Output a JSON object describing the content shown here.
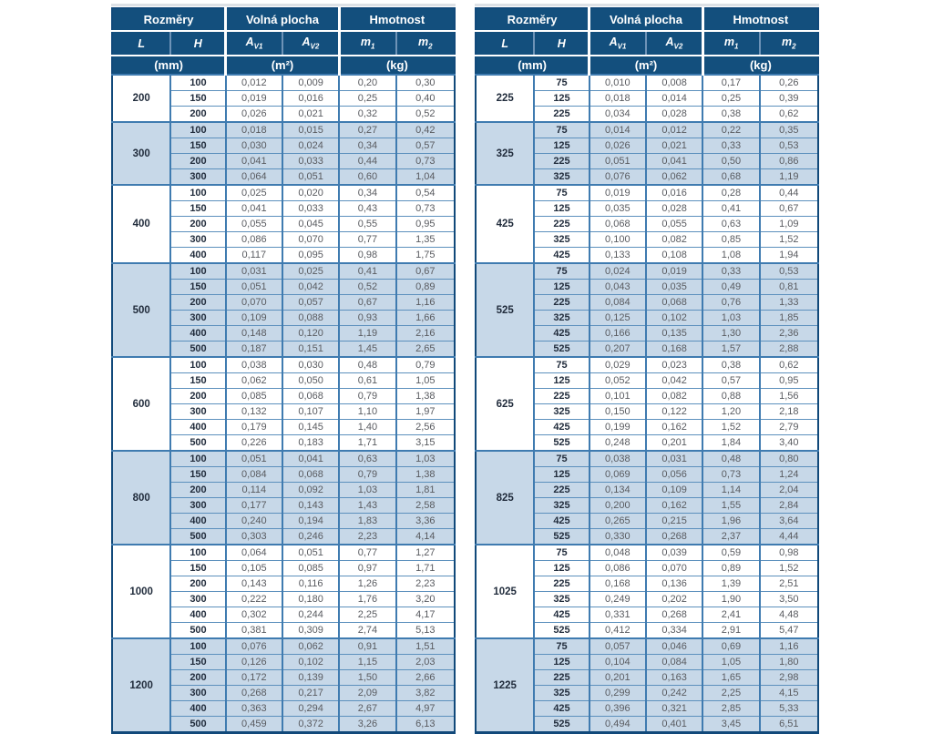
{
  "page": {
    "background": "#ffffff"
  },
  "colors": {
    "header_bg": "#134f7d",
    "header_text": "#ffffff",
    "grid_blue": "#3f7bb0",
    "stripe_light": "#c7d8e8",
    "stripe_white": "#ffffff",
    "dim_text": "#222d3d",
    "value_text": "#595b60",
    "outer_border": "#11497a"
  },
  "header": {
    "sections": [
      {
        "label": "Rozměry",
        "colspan": 2
      },
      {
        "label": "Volná plocha",
        "colspan": 2
      },
      {
        "label": "Hmotnost",
        "colspan": 2
      }
    ],
    "columns": [
      {
        "base": "L",
        "sub": ""
      },
      {
        "base": "H",
        "sub": ""
      },
      {
        "base": "A",
        "sub": "V1"
      },
      {
        "base": "A",
        "sub": "V2"
      },
      {
        "base": "m",
        "sub": "1"
      },
      {
        "base": "m",
        "sub": "2"
      }
    ],
    "units": [
      {
        "label": "(mm)",
        "colspan": 2
      },
      {
        "label": "(m²)",
        "colspan": 2
      },
      {
        "label": "(kg)",
        "colspan": 2
      }
    ]
  },
  "tables": [
    {
      "groups": [
        {
          "L": "200",
          "rows": [
            [
              "100",
              "0,012",
              "0,009",
              "0,20",
              "0,30"
            ],
            [
              "150",
              "0,019",
              "0,016",
              "0,25",
              "0,40"
            ],
            [
              "200",
              "0,026",
              "0,021",
              "0,32",
              "0,52"
            ]
          ]
        },
        {
          "L": "300",
          "rows": [
            [
              "100",
              "0,018",
              "0,015",
              "0,27",
              "0,42"
            ],
            [
              "150",
              "0,030",
              "0,024",
              "0,34",
              "0,57"
            ],
            [
              "200",
              "0,041",
              "0,033",
              "0,44",
              "0,73"
            ],
            [
              "300",
              "0,064",
              "0,051",
              "0,60",
              "1,04"
            ]
          ]
        },
        {
          "L": "400",
          "rows": [
            [
              "100",
              "0,025",
              "0,020",
              "0,34",
              "0,54"
            ],
            [
              "150",
              "0,041",
              "0,033",
              "0,43",
              "0,73"
            ],
            [
              "200",
              "0,055",
              "0,045",
              "0,55",
              "0,95"
            ],
            [
              "300",
              "0,086",
              "0,070",
              "0,77",
              "1,35"
            ],
            [
              "400",
              "0,117",
              "0,095",
              "0,98",
              "1,75"
            ]
          ]
        },
        {
          "L": "500",
          "rows": [
            [
              "100",
              "0,031",
              "0,025",
              "0,41",
              "0,67"
            ],
            [
              "150",
              "0,051",
              "0,042",
              "0,52",
              "0,89"
            ],
            [
              "200",
              "0,070",
              "0,057",
              "0,67",
              "1,16"
            ],
            [
              "300",
              "0,109",
              "0,088",
              "0,93",
              "1,66"
            ],
            [
              "400",
              "0,148",
              "0,120",
              "1,19",
              "2,16"
            ],
            [
              "500",
              "0,187",
              "0,151",
              "1,45",
              "2,65"
            ]
          ]
        },
        {
          "L": "600",
          "rows": [
            [
              "100",
              "0,038",
              "0,030",
              "0,48",
              "0,79"
            ],
            [
              "150",
              "0,062",
              "0,050",
              "0,61",
              "1,05"
            ],
            [
              "200",
              "0,085",
              "0,068",
              "0,79",
              "1,38"
            ],
            [
              "300",
              "0,132",
              "0,107",
              "1,10",
              "1,97"
            ],
            [
              "400",
              "0,179",
              "0,145",
              "1,40",
              "2,56"
            ],
            [
              "500",
              "0,226",
              "0,183",
              "1,71",
              "3,15"
            ]
          ]
        },
        {
          "L": "800",
          "rows": [
            [
              "100",
              "0,051",
              "0,041",
              "0,63",
              "1,03"
            ],
            [
              "150",
              "0,084",
              "0,068",
              "0,79",
              "1,38"
            ],
            [
              "200",
              "0,114",
              "0,092",
              "1,03",
              "1,81"
            ],
            [
              "300",
              "0,177",
              "0,143",
              "1,43",
              "2,58"
            ],
            [
              "400",
              "0,240",
              "0,194",
              "1,83",
              "3,36"
            ],
            [
              "500",
              "0,303",
              "0,246",
              "2,23",
              "4,14"
            ]
          ]
        },
        {
          "L": "1000",
          "rows": [
            [
              "100",
              "0,064",
              "0,051",
              "0,77",
              "1,27"
            ],
            [
              "150",
              "0,105",
              "0,085",
              "0,97",
              "1,71"
            ],
            [
              "200",
              "0,143",
              "0,116",
              "1,26",
              "2,23"
            ],
            [
              "300",
              "0,222",
              "0,180",
              "1,76",
              "3,20"
            ],
            [
              "400",
              "0,302",
              "0,244",
              "2,25",
              "4,17"
            ],
            [
              "500",
              "0,381",
              "0,309",
              "2,74",
              "5,13"
            ]
          ]
        },
        {
          "L": "1200",
          "rows": [
            [
              "100",
              "0,076",
              "0,062",
              "0,91",
              "1,51"
            ],
            [
              "150",
              "0,126",
              "0,102",
              "1,15",
              "2,03"
            ],
            [
              "200",
              "0,172",
              "0,139",
              "1,50",
              "2,66"
            ],
            [
              "300",
              "0,268",
              "0,217",
              "2,09",
              "3,82"
            ],
            [
              "400",
              "0,363",
              "0,294",
              "2,67",
              "4,97"
            ],
            [
              "500",
              "0,459",
              "0,372",
              "3,26",
              "6,13"
            ]
          ]
        }
      ]
    },
    {
      "groups": [
        {
          "L": "225",
          "rows": [
            [
              "75",
              "0,010",
              "0,008",
              "0,17",
              "0,26"
            ],
            [
              "125",
              "0,018",
              "0,014",
              "0,25",
              "0,39"
            ],
            [
              "225",
              "0,034",
              "0,028",
              "0,38",
              "0,62"
            ]
          ]
        },
        {
          "L": "325",
          "rows": [
            [
              "75",
              "0,014",
              "0,012",
              "0,22",
              "0,35"
            ],
            [
              "125",
              "0,026",
              "0,021",
              "0,33",
              "0,53"
            ],
            [
              "225",
              "0,051",
              "0,041",
              "0,50",
              "0,86"
            ],
            [
              "325",
              "0,076",
              "0,062",
              "0,68",
              "1,19"
            ]
          ]
        },
        {
          "L": "425",
          "rows": [
            [
              "75",
              "0,019",
              "0,016",
              "0,28",
              "0,44"
            ],
            [
              "125",
              "0,035",
              "0,028",
              "0,41",
              "0,67"
            ],
            [
              "225",
              "0,068",
              "0,055",
              "0,63",
              "1,09"
            ],
            [
              "325",
              "0,100",
              "0,082",
              "0,85",
              "1,52"
            ],
            [
              "425",
              "0,133",
              "0,108",
              "1,08",
              "1,94"
            ]
          ]
        },
        {
          "L": "525",
          "rows": [
            [
              "75",
              "0,024",
              "0,019",
              "0,33",
              "0,53"
            ],
            [
              "125",
              "0,043",
              "0,035",
              "0,49",
              "0,81"
            ],
            [
              "225",
              "0,084",
              "0,068",
              "0,76",
              "1,33"
            ],
            [
              "325",
              "0,125",
              "0,102",
              "1,03",
              "1,85"
            ],
            [
              "425",
              "0,166",
              "0,135",
              "1,30",
              "2,36"
            ],
            [
              "525",
              "0,207",
              "0,168",
              "1,57",
              "2,88"
            ]
          ]
        },
        {
          "L": "625",
          "rows": [
            [
              "75",
              "0,029",
              "0,023",
              "0,38",
              "0,62"
            ],
            [
              "125",
              "0,052",
              "0,042",
              "0,57",
              "0,95"
            ],
            [
              "225",
              "0,101",
              "0,082",
              "0,88",
              "1,56"
            ],
            [
              "325",
              "0,150",
              "0,122",
              "1,20",
              "2,18"
            ],
            [
              "425",
              "0,199",
              "0,162",
              "1,52",
              "2,79"
            ],
            [
              "525",
              "0,248",
              "0,201",
              "1,84",
              "3,40"
            ]
          ]
        },
        {
          "L": "825",
          "rows": [
            [
              "75",
              "0,038",
              "0,031",
              "0,48",
              "0,80"
            ],
            [
              "125",
              "0,069",
              "0,056",
              "0,73",
              "1,24"
            ],
            [
              "225",
              "0,134",
              "0,109",
              "1,14",
              "2,04"
            ],
            [
              "325",
              "0,200",
              "0,162",
              "1,55",
              "2,84"
            ],
            [
              "425",
              "0,265",
              "0,215",
              "1,96",
              "3,64"
            ],
            [
              "525",
              "0,330",
              "0,268",
              "2,37",
              "4,44"
            ]
          ]
        },
        {
          "L": "1025",
          "rows": [
            [
              "75",
              "0,048",
              "0,039",
              "0,59",
              "0,98"
            ],
            [
              "125",
              "0,086",
              "0,070",
              "0,89",
              "1,52"
            ],
            [
              "225",
              "0,168",
              "0,136",
              "1,39",
              "2,51"
            ],
            [
              "325",
              "0,249",
              "0,202",
              "1,90",
              "3,50"
            ],
            [
              "425",
              "0,331",
              "0,268",
              "2,41",
              "4,48"
            ],
            [
              "525",
              "0,412",
              "0,334",
              "2,91",
              "5,47"
            ]
          ]
        },
        {
          "L": "1225",
          "rows": [
            [
              "75",
              "0,057",
              "0,046",
              "0,69",
              "1,16"
            ],
            [
              "125",
              "0,104",
              "0,084",
              "1,05",
              "1,80"
            ],
            [
              "225",
              "0,201",
              "0,163",
              "1,65",
              "2,98"
            ],
            [
              "325",
              "0,299",
              "0,242",
              "2,25",
              "4,15"
            ],
            [
              "425",
              "0,396",
              "0,321",
              "2,85",
              "5,33"
            ],
            [
              "525",
              "0,494",
              "0,401",
              "3,45",
              "6,51"
            ]
          ]
        }
      ]
    }
  ]
}
